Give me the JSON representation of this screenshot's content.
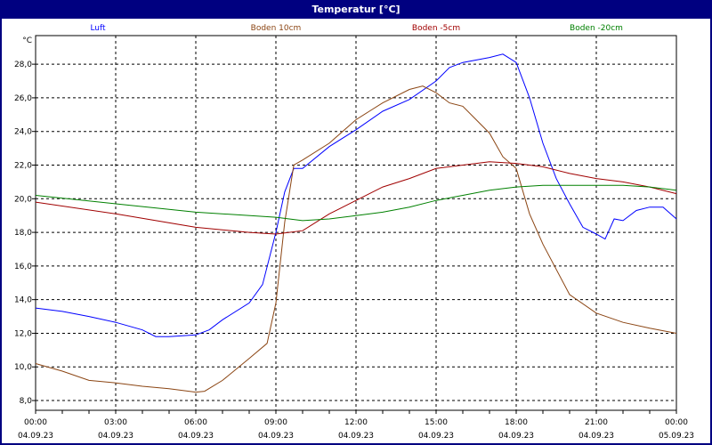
{
  "window": {
    "title": "Temperatur [°C]"
  },
  "chart_data": {
    "type": "line",
    "title": "Temperatur [°C]",
    "ylabel": "°C",
    "xlabel": "",
    "ylim": [
      7.42,
      29.7
    ],
    "xlim": [
      0,
      24
    ],
    "grid": true,
    "legend_placement": "top",
    "yticks": [
      8,
      10,
      12,
      14,
      16,
      18,
      20,
      22,
      24,
      26,
      28
    ],
    "ytick_labels": [
      "8,0",
      "10,0",
      "12,0",
      "14,0",
      "16,0",
      "18,0",
      "20,0",
      "22,0",
      "24,0",
      "26,0",
      "28,0"
    ],
    "xticks": [
      {
        "h": 0,
        "time": "00:00",
        "date": "04.09.23"
      },
      {
        "h": 3,
        "time": "03:00",
        "date": "04.09.23"
      },
      {
        "h": 6,
        "time": "06:00",
        "date": "04.09.23"
      },
      {
        "h": 9,
        "time": "09:00",
        "date": "04.09.23"
      },
      {
        "h": 12,
        "time": "12:00",
        "date": "04.09.23"
      },
      {
        "h": 15,
        "time": "15:00",
        "date": "04.09.23"
      },
      {
        "h": 18,
        "time": "18:00",
        "date": "04.09.23"
      },
      {
        "h": 21,
        "time": "21:00",
        "date": "04.09.23"
      },
      {
        "h": 24,
        "time": "00:00",
        "date": "05.09.23"
      }
    ],
    "series": [
      {
        "name": "Luft",
        "color": "#0000ff",
        "x": [
          0,
          1,
          2,
          3,
          4,
          4.5,
          5,
          6,
          6.5,
          7,
          8,
          8.5,
          9,
          9.33,
          9.67,
          10,
          11,
          12,
          13,
          14,
          15,
          15.5,
          16,
          17,
          17.5,
          18,
          18.5,
          19,
          19.5,
          20,
          20.5,
          21,
          21.33,
          21.67,
          22,
          22.5,
          23,
          23.5,
          24
        ],
        "y": [
          13.5,
          13.3,
          13.0,
          12.65,
          12.2,
          11.8,
          11.8,
          11.9,
          12.2,
          12.8,
          13.8,
          14.9,
          18.0,
          20.4,
          21.8,
          21.8,
          23.1,
          24.1,
          25.2,
          25.9,
          27.0,
          27.8,
          28.1,
          28.4,
          28.6,
          28.1,
          26.0,
          23.3,
          21.2,
          19.7,
          18.3,
          17.9,
          17.6,
          18.8,
          18.7,
          19.3,
          19.5,
          19.5,
          18.8
        ]
      },
      {
        "name": "Boden 10cm",
        "color": "#8b4513",
        "x": [
          0,
          1,
          2,
          3,
          4,
          5,
          6,
          6.33,
          7,
          8,
          8.67,
          9,
          9.33,
          9.67,
          10,
          11,
          12,
          12.5,
          13,
          14,
          14.5,
          15,
          15.5,
          16,
          17,
          17.5,
          18,
          18.5,
          19,
          20,
          21,
          22,
          23,
          24
        ],
        "y": [
          10.2,
          9.75,
          9.2,
          9.05,
          8.85,
          8.7,
          8.5,
          8.55,
          9.2,
          10.5,
          11.4,
          13.8,
          18.6,
          22.0,
          22.3,
          23.3,
          24.7,
          25.2,
          25.7,
          26.5,
          26.7,
          26.3,
          25.7,
          25.5,
          23.9,
          22.5,
          21.8,
          19.1,
          17.3,
          14.3,
          13.2,
          12.65,
          12.3,
          12.0
        ]
      },
      {
        "name": "Boden -5cm",
        "color": "#a00000",
        "x": [
          0,
          3,
          6,
          8,
          9,
          10,
          11,
          12,
          13,
          14,
          15,
          16,
          17,
          18,
          19,
          20,
          21,
          22,
          23,
          24
        ],
        "y": [
          19.8,
          19.1,
          18.3,
          18.0,
          17.9,
          18.1,
          19.1,
          19.9,
          20.7,
          21.2,
          21.8,
          22.0,
          22.2,
          22.1,
          21.9,
          21.5,
          21.2,
          21.0,
          20.7,
          20.3
        ]
      },
      {
        "name": "Boden -20cm",
        "color": "#008000",
        "x": [
          0,
          3,
          6,
          9,
          10,
          11,
          12,
          13,
          14,
          15,
          16,
          17,
          18,
          19,
          20,
          21,
          22,
          23,
          24
        ],
        "y": [
          20.2,
          19.7,
          19.2,
          18.9,
          18.7,
          18.8,
          19.0,
          19.2,
          19.5,
          19.9,
          20.2,
          20.5,
          20.7,
          20.8,
          20.8,
          20.8,
          20.8,
          20.7,
          20.5
        ]
      }
    ]
  }
}
